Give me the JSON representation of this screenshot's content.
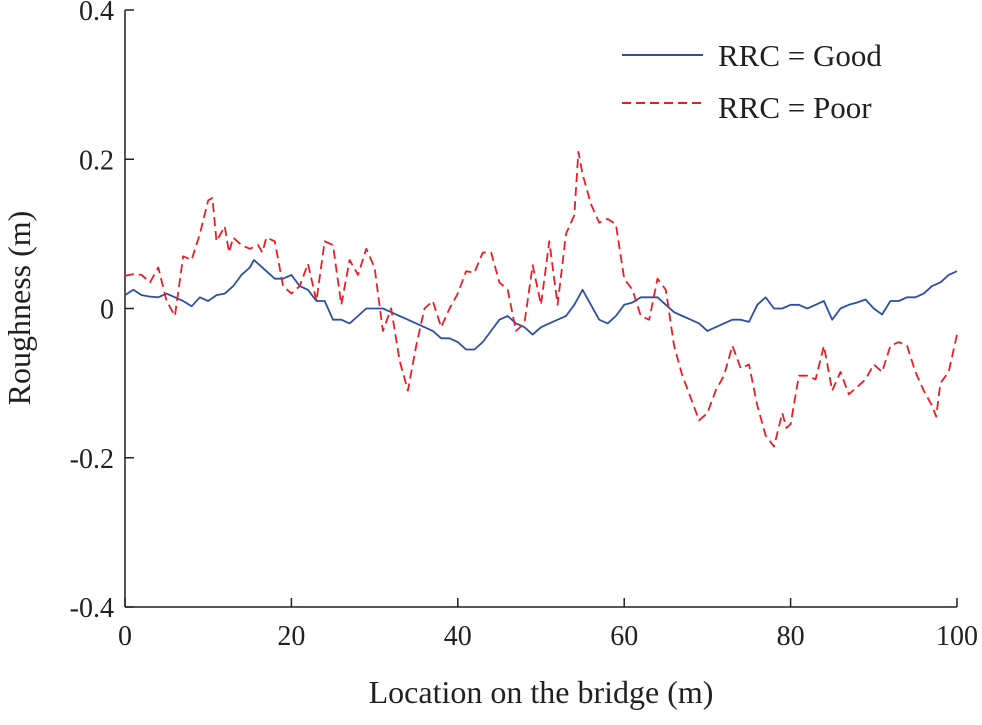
{
  "chart_data": {
    "type": "line",
    "title": "",
    "xlabel": "Location on the bridge (m)",
    "ylabel": "Roughness (m)",
    "xlim": [
      0,
      100
    ],
    "ylim": [
      -0.4,
      0.4
    ],
    "xticks": [
      0,
      20,
      40,
      60,
      80,
      100
    ],
    "xtick_labels": [
      "0",
      "20",
      "40",
      "60",
      "80",
      "100"
    ],
    "yticks": [
      -0.4,
      -0.2,
      0,
      0.2,
      0.4
    ],
    "ytick_labels": [
      "-0.4",
      "-0.2",
      "0",
      "0.2",
      "0.4"
    ],
    "grid": false,
    "legend_position": "top-right",
    "series": [
      {
        "name": "RRC = Good",
        "color": "#2e4fa3",
        "style": "solid",
        "x": [
          0,
          1,
          2,
          3,
          4,
          5,
          6,
          7,
          8,
          9,
          10,
          11,
          12,
          13,
          14,
          15,
          15.5,
          16,
          17,
          18,
          19,
          20,
          21,
          22,
          23,
          24,
          25,
          26,
          27,
          28,
          29,
          30,
          31,
          32,
          33,
          34,
          35,
          36,
          37,
          38,
          39,
          40,
          41,
          42,
          43,
          44,
          45,
          46,
          47,
          48,
          49,
          50,
          51,
          52,
          53,
          54,
          55,
          56,
          57,
          58,
          59,
          60,
          61,
          62,
          63,
          64,
          65,
          66,
          67,
          68,
          69,
          70,
          71,
          72,
          73,
          74,
          75,
          76,
          77,
          78,
          79,
          80,
          81,
          82,
          83,
          84,
          85,
          86,
          87,
          88,
          89,
          90,
          91,
          92,
          93,
          94,
          95,
          96,
          97,
          98,
          99,
          100
        ],
        "y": [
          0.018,
          0.025,
          0.018,
          0.016,
          0.015,
          0.02,
          0.015,
          0.01,
          0.003,
          0.015,
          0.01,
          0.018,
          0.02,
          0.03,
          0.045,
          0.055,
          0.065,
          0.06,
          0.05,
          0.04,
          0.04,
          0.045,
          0.03,
          0.025,
          0.01,
          0.01,
          -0.015,
          -0.015,
          -0.02,
          -0.01,
          0.0,
          0.0,
          0.0,
          -0.005,
          -0.01,
          -0.015,
          -0.02,
          -0.025,
          -0.03,
          -0.04,
          -0.04,
          -0.045,
          -0.055,
          -0.055,
          -0.045,
          -0.03,
          -0.015,
          -0.01,
          -0.02,
          -0.025,
          -0.035,
          -0.025,
          -0.02,
          -0.015,
          -0.01,
          0.005,
          0.025,
          0.005,
          -0.015,
          -0.02,
          -0.01,
          0.005,
          0.008,
          0.015,
          0.015,
          0.015,
          0.005,
          -0.005,
          -0.01,
          -0.015,
          -0.02,
          -0.03,
          -0.025,
          -0.02,
          -0.015,
          -0.015,
          -0.018,
          0.005,
          0.015,
          0.0,
          0.0,
          0.005,
          0.005,
          0.0,
          0.005,
          0.01,
          -0.015,
          0.0,
          0.005,
          0.008,
          0.012,
          0.0,
          -0.008,
          0.01,
          0.01,
          0.015,
          0.015,
          0.02,
          0.03,
          0.035,
          0.045,
          0.05
        ]
      },
      {
        "name": "RRC = Poor",
        "color": "#ed1c24",
        "style": "dashed",
        "x": [
          0,
          1,
          2,
          3,
          4,
          5,
          6,
          7,
          8,
          9,
          10,
          10.5,
          11,
          12,
          12.5,
          13,
          14,
          15,
          16,
          16.5,
          17,
          18,
          19,
          20,
          21,
          22,
          23,
          24,
          25,
          26,
          27,
          28,
          29,
          30,
          31,
          32,
          33,
          34,
          35,
          36,
          37,
          38,
          39,
          40,
          41,
          42,
          43,
          44,
          45,
          46,
          47,
          48,
          49,
          50,
          51,
          52,
          53,
          54,
          54.5,
          55,
          56,
          57,
          58,
          59,
          60,
          61,
          62,
          63,
          64,
          65,
          66,
          67,
          68,
          69,
          70,
          71,
          72,
          73,
          74,
          75,
          76,
          77,
          78,
          79,
          79.5,
          80,
          81,
          82,
          83,
          84,
          85,
          86,
          87,
          88,
          89,
          90,
          91,
          92,
          93,
          94,
          95,
          96,
          97,
          97.5,
          98,
          99,
          100
        ],
        "y": [
          0.044,
          0.046,
          0.045,
          0.035,
          0.055,
          0.01,
          -0.01,
          0.07,
          0.065,
          0.1,
          0.145,
          0.148,
          0.09,
          0.11,
          0.075,
          0.095,
          0.085,
          0.08,
          0.085,
          0.075,
          0.095,
          0.09,
          0.03,
          0.02,
          0.03,
          0.06,
          0.01,
          0.09,
          0.085,
          0.005,
          0.065,
          0.045,
          0.08,
          0.055,
          -0.03,
          0.0,
          -0.07,
          -0.11,
          -0.05,
          0.0,
          0.01,
          -0.025,
          0.0,
          0.02,
          0.05,
          0.048,
          0.075,
          0.075,
          0.035,
          0.025,
          -0.03,
          -0.02,
          0.058,
          0.005,
          0.09,
          0.005,
          0.1,
          0.125,
          0.21,
          0.18,
          0.14,
          0.115,
          0.12,
          0.113,
          0.04,
          0.025,
          -0.01,
          -0.015,
          0.04,
          0.025,
          -0.05,
          -0.09,
          -0.12,
          -0.15,
          -0.14,
          -0.11,
          -0.09,
          -0.05,
          -0.08,
          -0.075,
          -0.13,
          -0.17,
          -0.185,
          -0.14,
          -0.16,
          -0.155,
          -0.09,
          -0.09,
          -0.095,
          -0.05,
          -0.11,
          -0.085,
          -0.115,
          -0.105,
          -0.095,
          -0.075,
          -0.085,
          -0.05,
          -0.045,
          -0.05,
          -0.085,
          -0.11,
          -0.13,
          -0.145,
          -0.1,
          -0.085,
          -0.035
        ]
      }
    ]
  }
}
